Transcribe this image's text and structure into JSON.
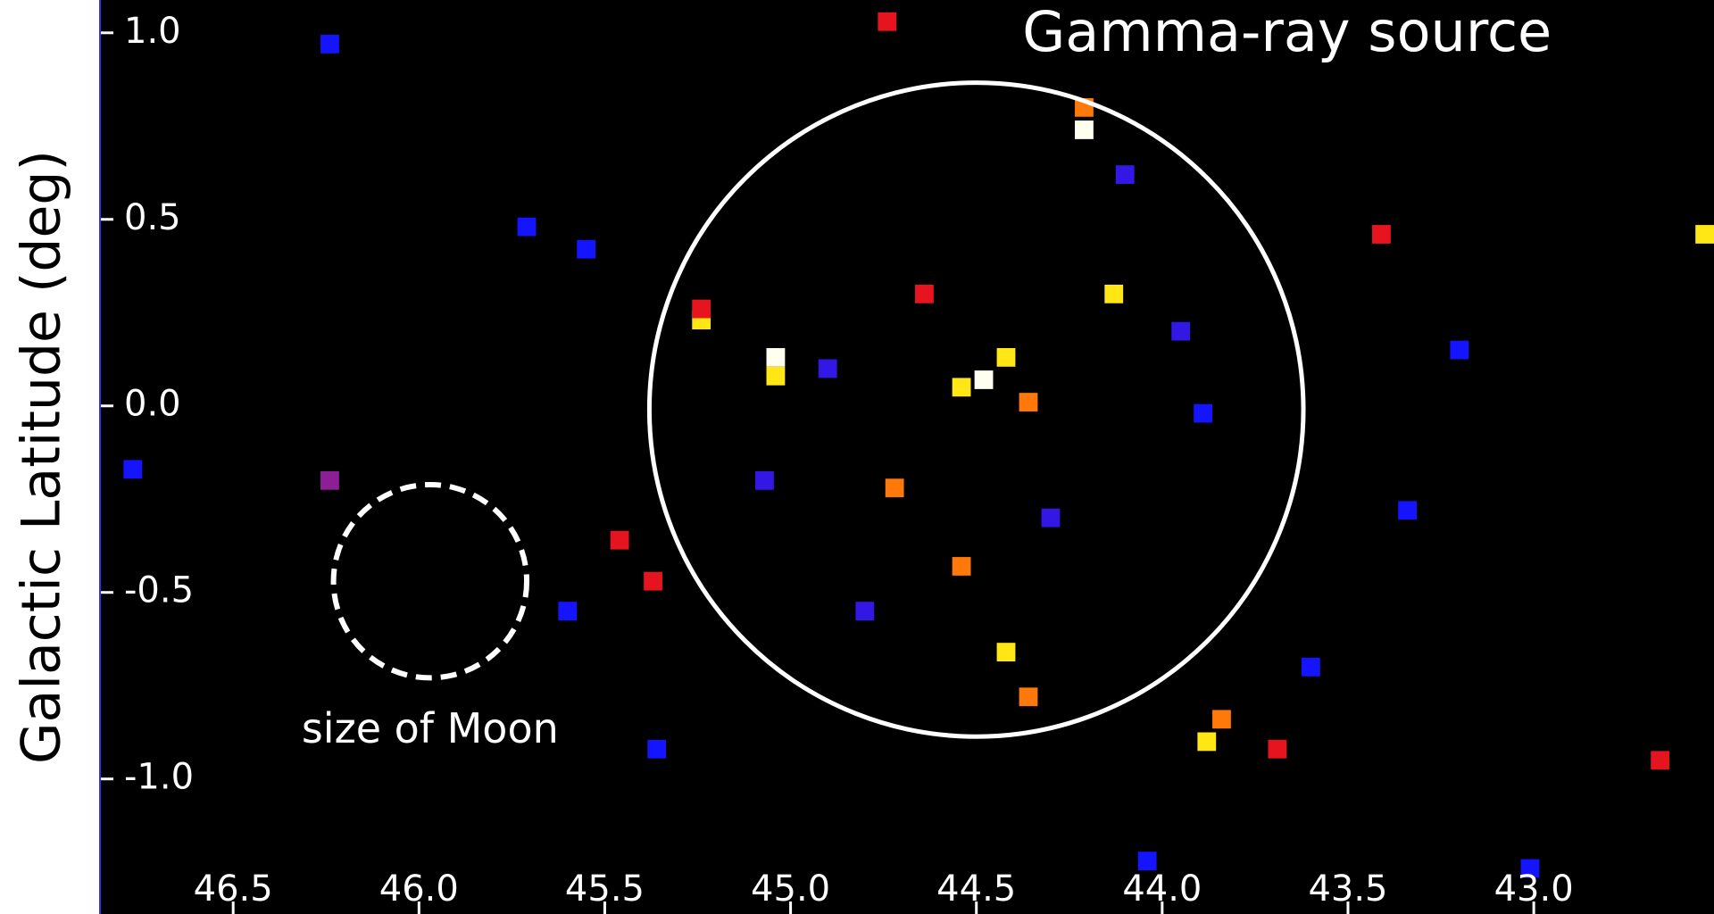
{
  "chart_data": {
    "type": "heatmap",
    "ylabel": "Galactic Latitude (deg)",
    "xlim": [
      46.856,
      42.515
    ],
    "ylim": [
      -1.362,
      1.088
    ],
    "xticks": [
      46.5,
      {
        "value": 46.0,
        "label": "46.0"
      },
      45.5,
      {
        "value": 45.0,
        "label": "45.0"
      },
      44.5,
      {
        "value": 44.0,
        "label": "44.0"
      },
      43.5,
      {
        "value": 43.0,
        "label": "43.0"
      }
    ],
    "yticks": [
      {
        "value": 1.0,
        "label": "1.0"
      },
      0.5,
      {
        "value": 0.0,
        "label": "0.0"
      },
      -0.5,
      {
        "value": -1.0,
        "label": "-1.0"
      }
    ],
    "x": [
      44.21,
      44.21,
      45.24,
      45.24,
      45.04,
      45.04,
      44.48,
      44.42,
      44.36,
      44.54,
      44.13,
      44.64,
      44.72,
      44.54,
      44.42,
      44.36,
      43.88,
      43.84,
      43.69,
      45.46,
      45.37,
      42.54,
      43.41,
      46.24,
      44.74,
      42.66,
      45.71,
      43.89,
      43.34,
      43.2,
      46.77,
      46.24,
      43.01,
      45.36,
      44.04,
      45.07,
      44.9,
      44.3,
      43.95,
      44.8,
      45.6,
      44.1,
      45.55,
      43.6
    ],
    "y": [
      0.74,
      0.8,
      0.23,
      0.26,
      0.13,
      0.08,
      0.07,
      0.13,
      0.01,
      0.05,
      0.3,
      0.3,
      -0.22,
      -0.43,
      -0.66,
      -0.78,
      -0.9,
      -0.84,
      -0.92,
      -0.36,
      -0.47,
      0.46,
      0.46,
      -0.2,
      1.03,
      -0.95,
      0.48,
      -0.02,
      -0.28,
      0.15,
      -0.17,
      0.97,
      -1.24,
      -0.92,
      -1.22,
      -0.2,
      0.1,
      -0.3,
      0.2,
      -0.55,
      -0.55,
      0.62,
      0.42,
      -0.7
    ],
    "values": [
      1.0,
      0.7,
      0.85,
      0.6,
      1.0,
      0.85,
      1.0,
      0.85,
      0.7,
      0.85,
      0.85,
      0.6,
      0.7,
      0.7,
      0.85,
      0.7,
      0.85,
      0.7,
      0.6,
      0.6,
      0.6,
      0.85,
      0.6,
      0.45,
      0.6,
      0.6,
      0.25,
      0.25,
      0.25,
      0.25,
      0.25,
      0.25,
      0.25,
      0.25,
      0.25,
      0.3,
      0.3,
      0.3,
      0.3,
      0.3,
      0.25,
      0.3,
      0.25,
      0.25
    ],
    "circles": [
      {
        "label": "Gamma-ray source",
        "lon": 44.5,
        "lat": -0.01,
        "radius": 0.88,
        "style": "solid"
      },
      {
        "label": "size of Moon",
        "lon": 45.97,
        "lat": -0.47,
        "radius": 0.26,
        "style": "dashed"
      }
    ]
  }
}
